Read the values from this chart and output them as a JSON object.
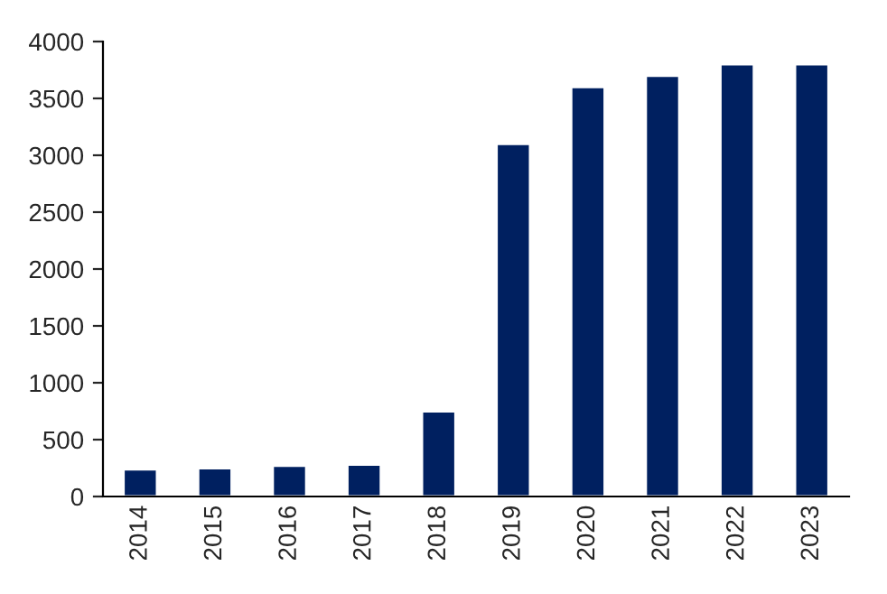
{
  "chart_data": {
    "type": "bar",
    "categories": [
      "2014",
      "2015",
      "2016",
      "2017",
      "2018",
      "2019",
      "2020",
      "2021",
      "2022",
      "2023"
    ],
    "values": [
      240,
      250,
      270,
      280,
      750,
      3100,
      3600,
      3700,
      3800,
      3800
    ],
    "color": "#002060",
    "ylim": [
      0,
      4000
    ],
    "yticks": [
      0,
      500,
      1000,
      1500,
      2000,
      2500,
      3000,
      3500,
      4000
    ],
    "grid": false
  }
}
